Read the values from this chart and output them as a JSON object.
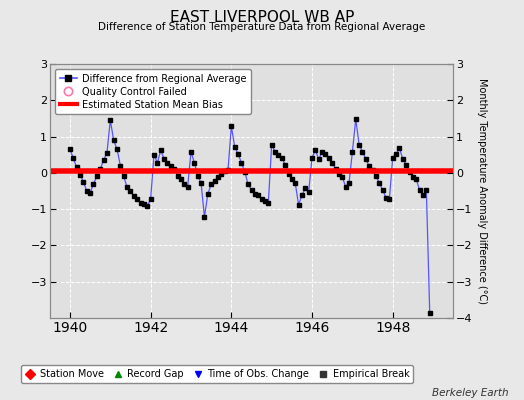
{
  "title": "EAST LIVERPOOL WB AP",
  "subtitle": "Difference of Station Temperature Data from Regional Average",
  "ylabel_right": "Monthly Temperature Anomaly Difference (°C)",
  "ylim": [
    -4,
    3
  ],
  "yticks_left": [
    -3,
    -2,
    -1,
    0,
    1,
    2,
    3
  ],
  "yticks_right": [
    -4,
    -3,
    -2,
    -1,
    0,
    1,
    2,
    3
  ],
  "xlim": [
    1939.5,
    1949.5
  ],
  "xticks": [
    1940,
    1942,
    1944,
    1946,
    1948
  ],
  "bias_value": 0.05,
  "bias_color": "#ff0000",
  "line_color": "#5555ff",
  "marker_color": "#000000",
  "bg_color": "#e8e8e8",
  "plot_bg_color": "#e0e0e0",
  "grid_color": "#cccccc",
  "credit": "Berkeley Earth",
  "legend1_labels": [
    "Difference from Regional Average",
    "Quality Control Failed",
    "Estimated Station Mean Bias"
  ],
  "legend2_labels": [
    "Station Move",
    "Record Gap",
    "Time of Obs. Change",
    "Empirical Break"
  ],
  "time_series": [
    0.65,
    0.4,
    0.15,
    -0.05,
    -0.25,
    -0.5,
    -0.55,
    -0.3,
    -0.1,
    0.1,
    0.35,
    0.55,
    1.45,
    0.9,
    0.65,
    0.2,
    -0.1,
    -0.4,
    -0.5,
    -0.65,
    -0.72,
    -0.82,
    -0.85,
    -0.92,
    -0.72,
    0.5,
    0.28,
    0.62,
    0.38,
    0.28,
    0.18,
    0.12,
    -0.08,
    -0.18,
    -0.32,
    -0.38,
    0.58,
    0.28,
    -0.08,
    -0.28,
    -1.22,
    -0.58,
    -0.32,
    -0.22,
    -0.12,
    -0.02,
    0.05,
    0.08,
    1.28,
    0.72,
    0.52,
    0.28,
    0.02,
    -0.32,
    -0.48,
    -0.58,
    -0.62,
    -0.72,
    -0.78,
    -0.82,
    0.78,
    0.58,
    0.48,
    0.42,
    0.22,
    -0.02,
    -0.18,
    -0.28,
    -0.88,
    -0.62,
    -0.42,
    -0.52,
    0.42,
    0.62,
    0.38,
    0.58,
    0.52,
    0.42,
    0.28,
    0.12,
    -0.02,
    -0.12,
    -0.38,
    -0.28,
    0.58,
    1.48,
    0.78,
    0.58,
    0.38,
    0.18,
    0.08,
    -0.08,
    -0.28,
    -0.48,
    -0.68,
    -0.72,
    0.42,
    0.52,
    0.68,
    0.38,
    0.22,
    0.02,
    -0.12,
    -0.18,
    -0.48,
    -0.62,
    -0.48,
    -3.85
  ]
}
